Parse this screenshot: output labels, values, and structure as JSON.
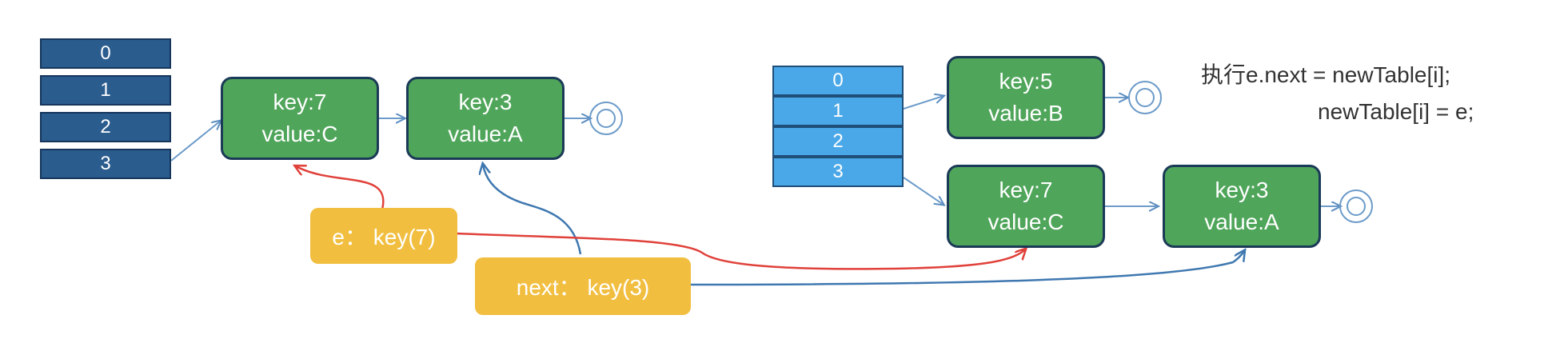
{
  "left": {
    "table": [
      "0",
      "1",
      "2",
      "3"
    ],
    "nodes": [
      {
        "key": "key:7",
        "value": "value:C"
      },
      {
        "key": "key:3",
        "value": "value:A"
      }
    ]
  },
  "right": {
    "table": [
      "0",
      "1",
      "2",
      "3"
    ],
    "nodes": [
      {
        "key": "key:5",
        "value": "value:B"
      },
      {
        "key": "key:7",
        "value": "value:C"
      },
      {
        "key": "key:3",
        "value": "value:A"
      }
    ]
  },
  "pointers": {
    "e": "e： key(7)",
    "next": "next： key(3)"
  },
  "code": {
    "line1": "执行e.next = newTable[i];",
    "line2": "newTable[i] = e;"
  },
  "colors": {
    "old_table": "#2B5C8E",
    "new_table": "#4AA8E8",
    "node": "#4FA55A",
    "pointer": "#F1BE3F",
    "e_arrow": "#E0413A",
    "next_arrow": "#3F78B0"
  }
}
